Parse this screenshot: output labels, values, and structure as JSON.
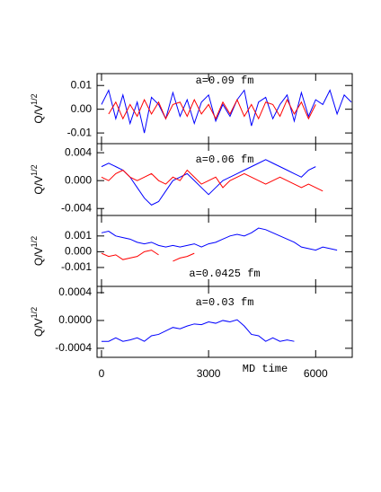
{
  "chart_data": [
    {
      "type": "line",
      "annotation": "a=0.09 fm",
      "ylabel": "Q/V",
      "ylabel_sup": "1/2",
      "xlim": [
        -125,
        7025
      ],
      "xticks": [
        0,
        3000,
        6000
      ],
      "ylim": [
        -0.0145,
        0.015
      ],
      "yticks": [
        0.01,
        {
          "value": 0,
          "label": "0.00"
        },
        -0.01
      ],
      "x": [
        0,
        200,
        400,
        600,
        800,
        1000,
        1200,
        1400,
        1600,
        1800,
        2000,
        2200,
        2400,
        2600,
        2800,
        3000,
        3200,
        3400,
        3600,
        3800,
        4000,
        4200,
        4400,
        4600,
        4800,
        5000,
        5200,
        5400,
        5600,
        5800,
        6000,
        6200,
        6400,
        6600,
        6800,
        7000
      ],
      "series": [
        {
          "color": "#0000ff",
          "values": [
            0.002,
            0.008,
            -0.004,
            0.006,
            -0.006,
            0.003,
            -0.01,
            0.005,
            0.002,
            -0.004,
            0.007,
            -0.003,
            0.004,
            -0.006,
            0.003,
            0.006,
            -0.005,
            0.002,
            -0.003,
            0.004,
            0.008,
            -0.007,
            0.003,
            0.005,
            -0.004,
            0.002,
            0.006,
            -0.005,
            0.007,
            -0.003,
            0.004,
            0.002,
            0.008,
            -0.002,
            0.006,
            0.003
          ]
        },
        {
          "color": "#ff0000",
          "values": [
            null,
            -0.002,
            0.003,
            -0.004,
            0.002,
            -0.003,
            0.004,
            -0.002,
            0.003,
            -0.004,
            0.002,
            0.003,
            -0.003,
            0.004,
            -0.002,
            0.002,
            -0.004,
            0.003,
            -0.002,
            0.004,
            -0.003,
            0.002,
            -0.004,
            0.003,
            0.002,
            -0.003,
            0.004,
            -0.002,
            0.003,
            -0.004,
            0.002,
            null,
            null,
            null,
            null,
            null
          ]
        }
      ]
    },
    {
      "type": "line",
      "annotation": "a=0.06 fm",
      "ylabel": "Q/V",
      "ylabel_sup": "1/2",
      "xlim": [
        -125,
        7025
      ],
      "xticks": [
        0,
        3000,
        6000
      ],
      "ylim": [
        -0.005,
        0.0053
      ],
      "yticks": [
        0.004,
        {
          "value": 0,
          "label": "0.000"
        },
        -0.004
      ],
      "x": [
        0,
        200,
        400,
        600,
        800,
        1000,
        1200,
        1400,
        1600,
        1800,
        2000,
        2200,
        2400,
        2600,
        2800,
        3000,
        3200,
        3400,
        3600,
        3800,
        4000,
        4200,
        4400,
        4600,
        4800,
        5000,
        5200,
        5400,
        5600,
        5800,
        6000,
        6200,
        6400,
        6600,
        6800,
        7000
      ],
      "series": [
        {
          "color": "#0000ff",
          "values": [
            0.002,
            0.0025,
            0.002,
            0.0015,
            0.0005,
            -0.001,
            -0.0025,
            -0.0035,
            -0.003,
            -0.0015,
            0.0,
            0.0005,
            0.001,
            0.0,
            -0.001,
            -0.002,
            -0.001,
            0.0,
            0.0005,
            0.001,
            0.0015,
            0.002,
            0.0025,
            0.003,
            0.0025,
            0.002,
            0.0015,
            0.001,
            0.0005,
            0.0015,
            0.002,
            null,
            null,
            null,
            null,
            null
          ]
        },
        {
          "color": "#ff0000",
          "values": [
            0.0005,
            0.0,
            0.001,
            0.0015,
            0.0005,
            0.0,
            0.0005,
            0.001,
            0.0,
            -0.0005,
            0.0005,
            0.0,
            0.0015,
            0.0005,
            -0.0005,
            0.0,
            0.0005,
            -0.001,
            0.0,
            0.0005,
            0.001,
            0.0005,
            0.0,
            -0.0005,
            0.0,
            0.0005,
            0.0,
            -0.0005,
            -0.001,
            -0.0005,
            -0.001,
            -0.0015,
            null,
            null,
            null,
            null
          ]
        }
      ]
    },
    {
      "type": "line",
      "annotation": "a=0.0425 fm",
      "ylabel": "Q/V",
      "ylabel_sup": "1/2",
      "xlim": [
        -125,
        7025
      ],
      "xticks": [
        0,
        3000,
        6000
      ],
      "ylim": [
        -0.0022,
        0.0023
      ],
      "yticks": [
        0.001,
        {
          "value": 0,
          "label": "0.000"
        },
        -0.001
      ],
      "x": [
        0,
        200,
        400,
        600,
        800,
        1000,
        1200,
        1400,
        1600,
        1800,
        2000,
        2200,
        2400,
        2600,
        2800,
        3000,
        3200,
        3400,
        3600,
        3800,
        4000,
        4200,
        4400,
        4600,
        4800,
        5000,
        5200,
        5400,
        5600,
        5800,
        6000,
        6200,
        6400,
        6600,
        6800,
        7000
      ],
      "series": [
        {
          "color": "#0000ff",
          "values": [
            0.0012,
            0.0013,
            0.001,
            0.0009,
            0.0008,
            0.0006,
            0.0005,
            0.0006,
            0.0004,
            0.0003,
            0.0004,
            0.0003,
            0.0004,
            0.0005,
            0.0003,
            0.0005,
            0.0006,
            0.0008,
            0.001,
            0.0011,
            0.001,
            0.0012,
            0.0015,
            0.0014,
            0.0012,
            0.001,
            0.0008,
            0.0006,
            0.0003,
            0.0002,
            0.0001,
            0.0003,
            0.0002,
            0.0001,
            null,
            null
          ]
        },
        {
          "color": "#ff0000",
          "values": [
            -0.0001,
            -0.0003,
            -0.0002,
            -0.0005,
            -0.0004,
            -0.0003,
            0.0,
            0.0001,
            -0.0002,
            null,
            -0.0006,
            -0.0004,
            -0.0003,
            -0.0001,
            null,
            null,
            null,
            null,
            null,
            null,
            null,
            null,
            null,
            null,
            null,
            null,
            null,
            null,
            null,
            null,
            null,
            null,
            null,
            null,
            null,
            null
          ]
        }
      ]
    },
    {
      "type": "line",
      "annotation": "a=0.03 fm",
      "ylabel": "Q/V",
      "ylabel_sup": "1/2",
      "xlabel": "MD time",
      "xlim": [
        -125,
        7025
      ],
      "xticks": [
        0,
        3000,
        6000
      ],
      "ylim": [
        -0.00053,
        0.00049
      ],
      "yticks": [
        0.0004,
        {
          "value": 0,
          "label": "0.0000"
        },
        -0.0004
      ],
      "x": [
        0,
        200,
        400,
        600,
        800,
        1000,
        1200,
        1400,
        1600,
        1800,
        2000,
        2200,
        2400,
        2600,
        2800,
        3000,
        3200,
        3400,
        3600,
        3800,
        4000,
        4200,
        4400,
        4600,
        4800,
        5000,
        5200,
        5400,
        5600,
        5800,
        6000,
        6200,
        6400,
        6600,
        6800,
        7000
      ],
      "series": [
        {
          "color": "#0000ff",
          "values": [
            -0.0003,
            -0.0003,
            -0.00025,
            -0.0003,
            -0.00028,
            -0.00025,
            -0.0003,
            -0.00022,
            -0.0002,
            -0.00015,
            -0.0001,
            -0.00012,
            -8e-05,
            -5e-05,
            -6e-05,
            -2e-05,
            -4e-05,
            0.0,
            -2e-05,
            1e-05,
            -8e-05,
            -0.0002,
            -0.00022,
            -0.0003,
            -0.00025,
            -0.0003,
            -0.00028,
            -0.0003,
            null,
            null,
            null,
            null,
            null,
            null,
            null,
            null
          ]
        }
      ]
    }
  ]
}
